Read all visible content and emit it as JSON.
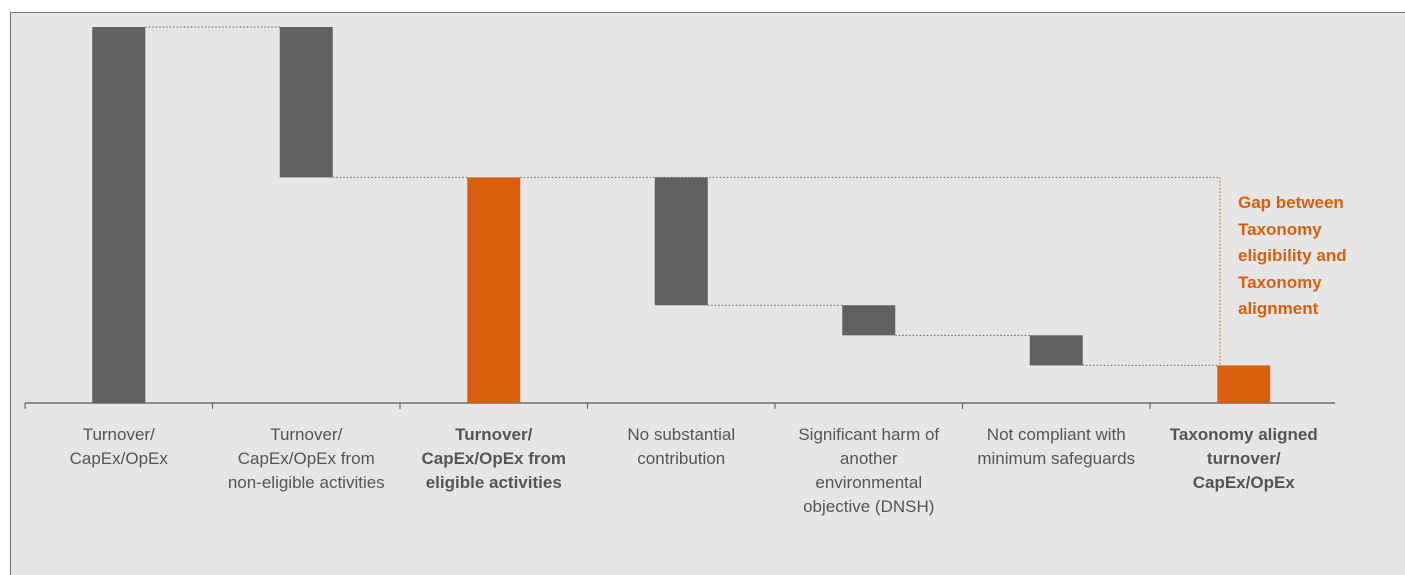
{
  "chart_data": {
    "type": "waterfall",
    "categories": [
      "Turnover/ CapEx/OpEx",
      "Turnover/ CapEx/OpEx from non-eligible activities",
      "Turnover/ CapEx/OpEx from eligible activities",
      "No substantial contribution",
      "Significant harm of another environmental objective (DNSH)",
      "Not compliant with minimum safeguards",
      "Taxonomy aligned turnover/ CapEx/OpEx"
    ],
    "values": [
      100,
      40,
      60,
      34,
      8,
      8,
      10
    ],
    "measure": [
      "total",
      "decrease",
      "total",
      "decrease",
      "decrease",
      "decrease",
      "total"
    ],
    "highlight": [
      false,
      false,
      true,
      false,
      false,
      false,
      true
    ],
    "color": "#606060",
    "highlight_color": "#d95f0e",
    "ylim": [
      0,
      100
    ],
    "annotation": "Gap between Taxonomy eligibility and Taxonomy alignment"
  }
}
